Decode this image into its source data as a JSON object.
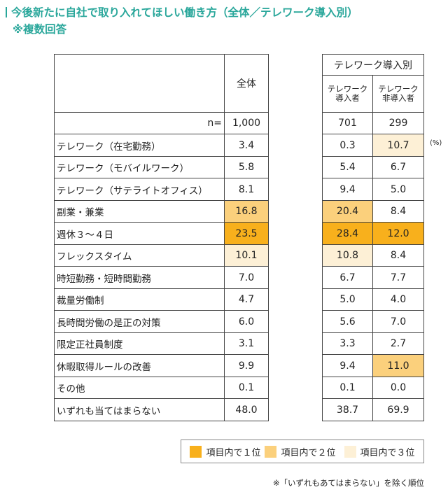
{
  "title": "今後新たに自社で取り入れてほしい働き方（全体／テレワーク導入別）",
  "subtitle": "※複数回答",
  "colors": {
    "rank1": "#f8b01c",
    "rank2": "#fbd07c",
    "rank3": "#fdf0d6",
    "title": "#2aa79b"
  },
  "table": {
    "col_total": "全体",
    "group_header": "テレワーク導入別",
    "col_adopter": "テレワーク\n導入者",
    "col_non_adopter": "テレワーク\n非導入者",
    "n_label": "n=",
    "n": [
      "1,000",
      "701",
      "299"
    ],
    "unit": "(%)",
    "rows": [
      {
        "label": "テレワーク（在宅勤務）",
        "values": [
          "3.4",
          "0.3",
          "10.7"
        ],
        "ranks": [
          0,
          0,
          3
        ]
      },
      {
        "label": "テレワーク（モバイルワーク）",
        "values": [
          "5.8",
          "5.4",
          "6.7"
        ],
        "ranks": [
          0,
          0,
          0
        ]
      },
      {
        "label": "テレワーク（サテライトオフィス）",
        "values": [
          "8.1",
          "9.4",
          "5.0"
        ],
        "ranks": [
          0,
          0,
          0
        ]
      },
      {
        "label": "副業・兼業",
        "values": [
          "16.8",
          "20.4",
          "8.4"
        ],
        "ranks": [
          2,
          2,
          0
        ]
      },
      {
        "label": "週休３～４日",
        "values": [
          "23.5",
          "28.4",
          "12.0"
        ],
        "ranks": [
          1,
          1,
          1
        ]
      },
      {
        "label": "フレックスタイム",
        "values": [
          "10.1",
          "10.8",
          "8.4"
        ],
        "ranks": [
          3,
          3,
          0
        ]
      },
      {
        "label": "時短勤務・短時間勤務",
        "values": [
          "7.0",
          "6.7",
          "7.7"
        ],
        "ranks": [
          0,
          0,
          0
        ]
      },
      {
        "label": "裁量労働制",
        "values": [
          "4.7",
          "5.0",
          "4.0"
        ],
        "ranks": [
          0,
          0,
          0
        ]
      },
      {
        "label": "長時間労働の是正の対策",
        "values": [
          "6.0",
          "5.6",
          "7.0"
        ],
        "ranks": [
          0,
          0,
          0
        ]
      },
      {
        "label": "限定正社員制度",
        "values": [
          "3.1",
          "3.3",
          "2.7"
        ],
        "ranks": [
          0,
          0,
          0
        ]
      },
      {
        "label": "休暇取得ルールの改善",
        "values": [
          "9.9",
          "9.4",
          "11.0"
        ],
        "ranks": [
          0,
          0,
          2
        ]
      },
      {
        "label": "その他",
        "values": [
          "0.1",
          "0.1",
          "0.0"
        ],
        "ranks": [
          0,
          0,
          0
        ]
      },
      {
        "label": "いずれも当てはまらない",
        "values": [
          "48.0",
          "38.7",
          "69.9"
        ],
        "ranks": [
          0,
          0,
          0
        ]
      }
    ]
  },
  "legend": [
    "項目内で１位",
    "項目内で２位",
    "項目内で３位"
  ],
  "footnote": "※「いずれもあてはまらない」を除く順位"
}
